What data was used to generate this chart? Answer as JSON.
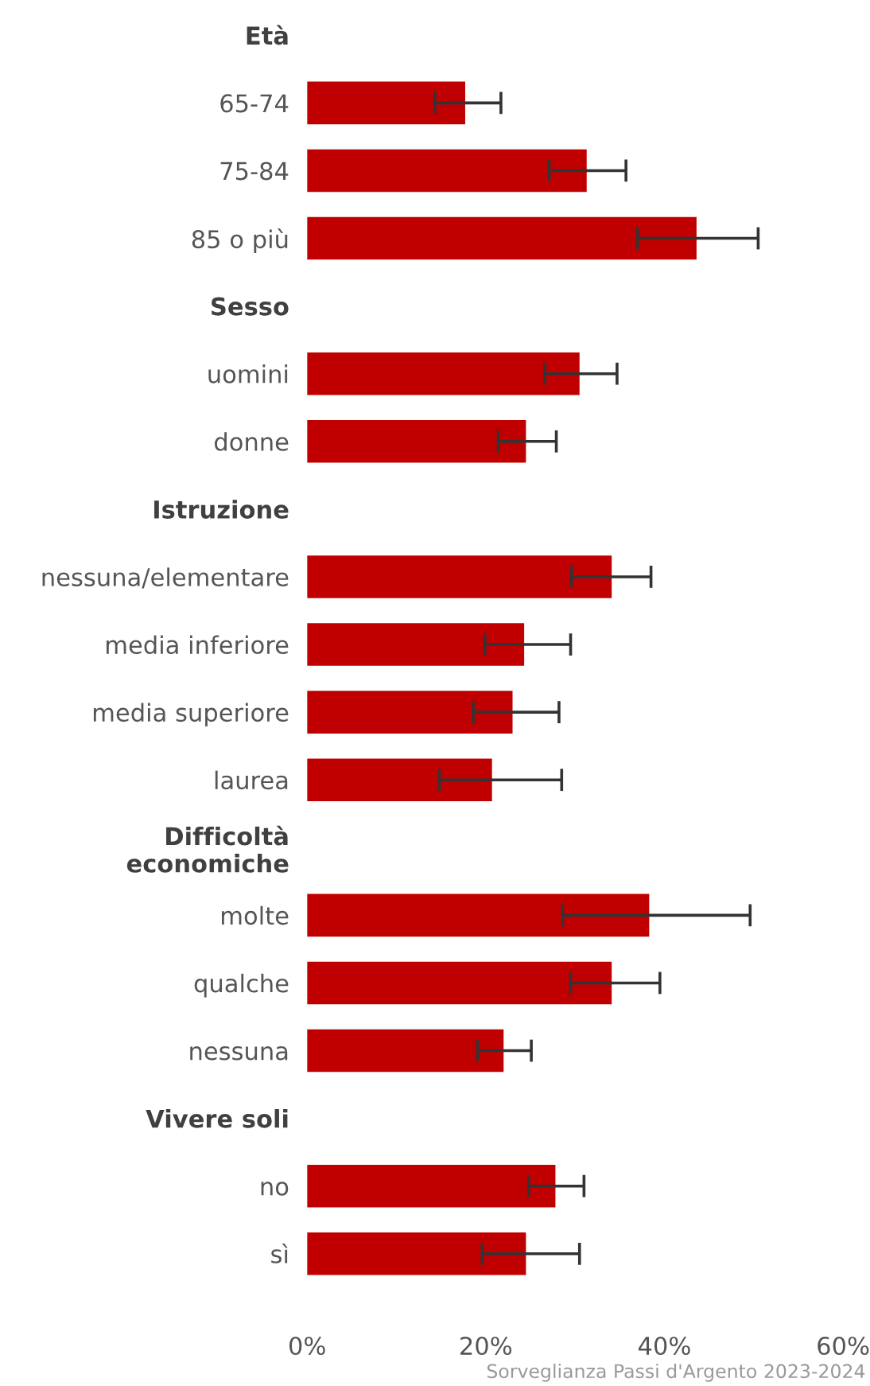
{
  "chart_data": {
    "type": "bar",
    "orientation": "horizontal",
    "categories": [
      "Età",
      "65-74",
      "75-84",
      "85 o più",
      "Sesso",
      "uomini",
      "donne",
      "Istruzione",
      "nessuna/elementare",
      "media inferiore",
      "media superiore",
      "laurea",
      "Difficoltà\neconomiche",
      "molte",
      "qualche",
      "nessuna",
      "Vivere soli",
      "no",
      "sì"
    ],
    "values": [
      null,
      17.7,
      31.3,
      43.6,
      null,
      30.5,
      24.5,
      null,
      34.1,
      24.3,
      23.0,
      20.7,
      null,
      38.3,
      34.1,
      22.0,
      null,
      27.8,
      24.5
    ],
    "errors": [
      null,
      [
        14.3,
        21.7
      ],
      [
        27.1,
        35.7
      ],
      [
        37.0,
        50.5
      ],
      null,
      [
        26.6,
        34.7
      ],
      [
        21.4,
        27.9
      ],
      null,
      [
        29.6,
        38.5
      ],
      [
        19.9,
        29.5
      ],
      [
        18.6,
        28.2
      ],
      [
        14.8,
        28.5
      ],
      null,
      [
        28.6,
        49.6
      ],
      [
        29.5,
        39.5
      ],
      [
        19.1,
        25.1
      ],
      null,
      [
        24.8,
        31.0
      ],
      [
        19.6,
        30.5
      ]
    ],
    "color": "#c00000",
    "xlim": [
      0,
      60
    ],
    "xticks": [
      {
        "value": 0,
        "label": "0%"
      },
      {
        "value": 20,
        "label": "20%"
      },
      {
        "value": 40,
        "label": "40%"
      },
      {
        "value": 60,
        "label": "60%"
      }
    ],
    "grid": false,
    "legend": false,
    "annotations": [
      "Sorveglianza Passi d'Argento 2023-2024"
    ]
  }
}
